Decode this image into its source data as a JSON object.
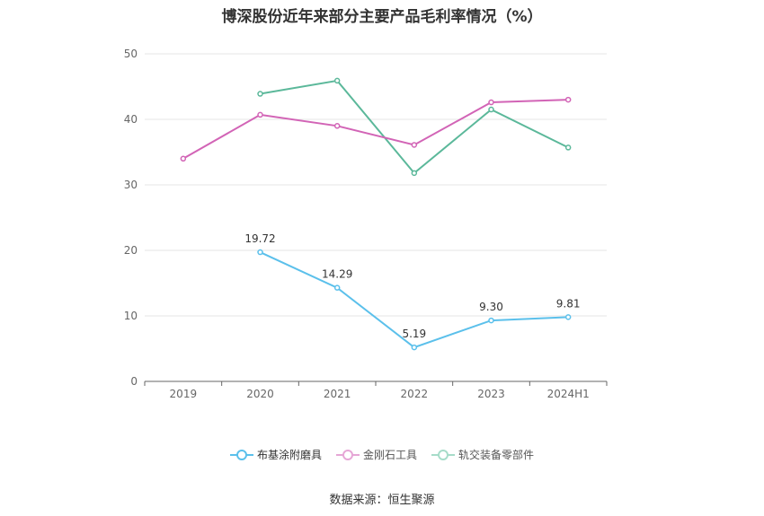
{
  "title": "博深股份近年来部分主要产品毛利率情况（%）",
  "source": "数据来源：恒生聚源",
  "chart_data": {
    "type": "line",
    "title": "博深股份近年来部分主要产品毛利率情况（%）",
    "categories": [
      "2019",
      "2020",
      "2021",
      "2022",
      "2023",
      "2024H1"
    ],
    "ylim": [
      0,
      50
    ],
    "yticks": [
      0,
      10,
      20,
      30,
      40,
      50
    ],
    "grid": true,
    "legend_position": "bottom",
    "series": [
      {
        "name": "布基涂附磨具",
        "color": "#5bc0eb",
        "values": [
          null,
          19.72,
          14.29,
          5.19,
          9.3,
          9.81
        ],
        "labels": [
          "",
          "19.72",
          "14.29",
          "5.19",
          "9.30",
          "9.81"
        ]
      },
      {
        "name": "金刚石工具",
        "color": "#d264b6",
        "values": [
          34.0,
          40.7,
          39.0,
          36.1,
          42.6,
          43.0
        ]
      },
      {
        "name": "轨交装备零部件",
        "color": "#5bb89a",
        "values": [
          null,
          43.9,
          45.9,
          31.8,
          41.5,
          35.7
        ]
      }
    ]
  }
}
